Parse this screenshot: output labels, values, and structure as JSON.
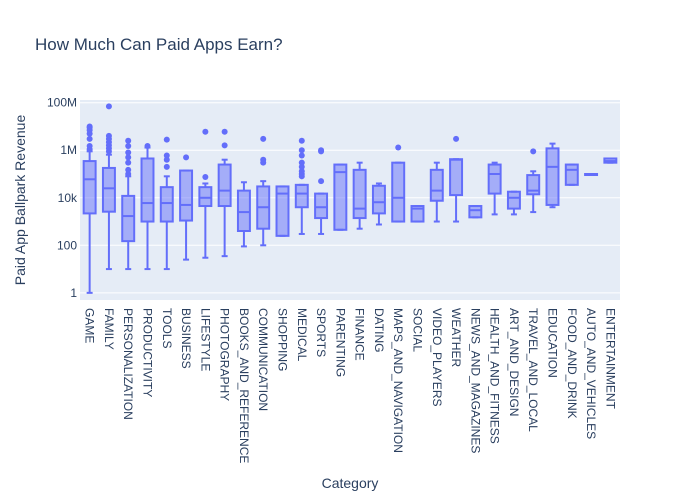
{
  "chart_data": {
    "type": "box",
    "title": "How Much Can Paid Apps Earn?",
    "xlabel": "Category",
    "ylabel": "Paid App Ballpark Revenue",
    "y_scale": "log",
    "ylim": [
      0.5,
      130000000
    ],
    "yticks": [
      1,
      100,
      10000,
      1000000,
      100000000
    ],
    "ytick_labels": [
      "1",
      "100",
      "10k",
      "1M",
      "100M"
    ],
    "color": "#636efa",
    "plot_bg": "#e5ecf6",
    "categories": [
      "GAME",
      "FAMILY",
      "PERSONALIZATION",
      "PRODUCTIVITY",
      "TOOLS",
      "BUSINESS",
      "LIFESTYLE",
      "PHOTOGRAPHY",
      "BOOKS_AND_REFERENCE",
      "COMMUNICATION",
      "SHOPPING",
      "MEDICAL",
      "SPORTS",
      "PARENTING",
      "FINANCE",
      "DATING",
      "MAPS_AND_NAVIGATION",
      "SOCIAL",
      "VIDEO_PLAYERS",
      "WEATHER",
      "NEWS_AND_MAGAZINES",
      "HEALTH_AND_FITNESS",
      "ART_AND_DESIGN",
      "TRAVEL_AND_LOCAL",
      "EDUCATION",
      "FOOD_AND_DRINK",
      "AUTO_AND_VEHICLES",
      "ENTERTAINMENT"
    ],
    "boxes": [
      {
        "min": 1,
        "q1": 2200,
        "median": 60000,
        "q3": 350000,
        "max": 900000,
        "outliers": [
          1100000,
          1500000,
          3000000,
          5000000,
          7000000,
          9000000,
          10000000
        ]
      },
      {
        "min": 10,
        "q1": 2600,
        "median": 25000,
        "q3": 180000,
        "max": 650000,
        "outliers": [
          900000,
          1200000,
          1600000,
          2200000,
          3000000,
          4000000,
          70000000
        ]
      },
      {
        "min": 10,
        "q1": 150,
        "median": 1700,
        "q3": 12000,
        "max": 80000,
        "outliers": [
          100000,
          150000,
          300000,
          500000,
          800000,
          1500000,
          2500000
        ]
      },
      {
        "min": 10,
        "q1": 1000,
        "median": 6000,
        "q3": 450000,
        "max": 1300000,
        "outliers": [
          1500000
        ]
      },
      {
        "min": 10,
        "q1": 1000,
        "median": 6000,
        "q3": 28000,
        "max": 80000,
        "outliers": [
          200000,
          400000,
          600000,
          2800000
        ]
      },
      {
        "min": 25,
        "q1": 1100,
        "median": 5000,
        "q3": 140000,
        "max": 140000,
        "outliers": [
          500000
        ]
      },
      {
        "min": 30,
        "q1": 4500,
        "median": 10000,
        "q3": 28000,
        "max": 40000,
        "outliers": [
          75000,
          6000000
        ]
      },
      {
        "min": 35,
        "q1": 4500,
        "median": 20000,
        "q3": 250000,
        "max": 400000,
        "outliers": [
          1600000,
          6000000
        ]
      },
      {
        "min": 90,
        "q1": 400,
        "median": 2500,
        "q3": 20000,
        "max": 45000,
        "outliers": []
      },
      {
        "min": 100,
        "q1": 500,
        "median": 4000,
        "q3": 30000,
        "max": 50000,
        "outliers": [
          300000,
          400000,
          3000000
        ]
      },
      {
        "min": 250,
        "q1": 250,
        "median": 15000,
        "q3": 30000,
        "max": 30000,
        "outliers": []
      },
      {
        "min": 300,
        "q1": 4000,
        "median": 15000,
        "q3": 35000,
        "max": 35000,
        "outliers": [
          80000,
          100000,
          130000,
          200000,
          300000,
          600000,
          1000000,
          2500000
        ]
      },
      {
        "min": 300,
        "q1": 1400,
        "median": 4000,
        "q3": 15000,
        "max": 15000,
        "outliers": [
          50000,
          900000,
          1000000
        ]
      },
      {
        "min": 450,
        "q1": 450,
        "median": 120000,
        "q3": 250000,
        "max": 250000,
        "outliers": []
      },
      {
        "min": 500,
        "q1": 1400,
        "median": 3500,
        "q3": 150000,
        "max": 300000,
        "outliers": []
      },
      {
        "min": 750,
        "q1": 2200,
        "median": 6500,
        "q3": 32000,
        "max": 40000,
        "outliers": []
      },
      {
        "min": 1000,
        "q1": 1000,
        "median": 10000,
        "q3": 300000,
        "max": 300000,
        "outliers": [
          1300000
        ]
      },
      {
        "min": 1000,
        "q1": 1000,
        "median": 3500,
        "q3": 4500,
        "max": 4500,
        "outliers": []
      },
      {
        "min": 1000,
        "q1": 7500,
        "median": 20000,
        "q3": 150000,
        "max": 300000,
        "outliers": []
      },
      {
        "min": 1000,
        "q1": 13000,
        "median": 400000,
        "q3": 420000,
        "max": 420000,
        "outliers": [
          3000000
        ]
      },
      {
        "min": 1500,
        "q1": 1500,
        "median": 3000,
        "q3": 4500,
        "max": 4500,
        "outliers": []
      },
      {
        "min": 2000,
        "q1": 15000,
        "median": 100000,
        "q3": 250000,
        "max": 300000,
        "outliers": []
      },
      {
        "min": 2000,
        "q1": 3500,
        "median": 10000,
        "q3": 18000,
        "max": 18000,
        "outliers": []
      },
      {
        "min": 2500,
        "q1": 14000,
        "median": 20000,
        "q3": 90000,
        "max": 130000,
        "outliers": [
          900000
        ]
      },
      {
        "min": 4000,
        "q1": 5000,
        "median": 200000,
        "q3": 1200000,
        "max": 1900000,
        "outliers": []
      },
      {
        "min": 35000,
        "q1": 35000,
        "median": 150000,
        "q3": 250000,
        "max": 250000,
        "outliers": []
      },
      {
        "min": 100000,
        "q1": 100000,
        "median": 100000,
        "q3": 100000,
        "max": 100000,
        "outliers": []
      },
      {
        "min": 300000,
        "q1": 300000,
        "median": 350000,
        "q3": 450000,
        "max": 450000,
        "outliers": []
      }
    ]
  }
}
